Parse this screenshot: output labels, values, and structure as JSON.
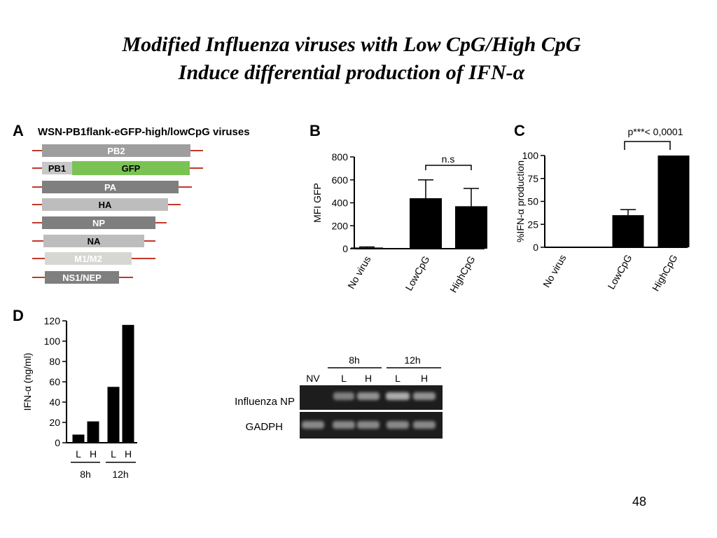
{
  "title": {
    "line1": "Modified Influenza viruses with Low CpG/High CpG",
    "line2": "Induce differential production of IFN-α"
  },
  "page_number": "48",
  "panels": {
    "a": {
      "letter": "A",
      "heading": "WSN-PB1flank-eGFP-high/lowCpG viruses",
      "segments": [
        {
          "label": "PB2",
          "color": "#9e9e9e"
        },
        {
          "label": "PB1",
          "color": "#c8c8c8",
          "insert_label": "GFP",
          "insert_color": "#7ac353"
        },
        {
          "label": "PA",
          "color": "#7f7f7f"
        },
        {
          "label": "HA",
          "color": "#bdbdbd"
        },
        {
          "label": "NP",
          "color": "#7f7f7f"
        },
        {
          "label": "NA",
          "color": "#bdbdbd"
        },
        {
          "label": "M1/M2",
          "color": "#d6d6d2"
        },
        {
          "label": "NS1/NEP",
          "color": "#7f7f7f"
        }
      ],
      "flank_color": "#c0392b"
    },
    "b": {
      "letter": "B"
    },
    "c": {
      "letter": "C"
    },
    "d": {
      "letter": "D"
    },
    "gel": {
      "time_labels": [
        "8h",
        "12h"
      ],
      "lane_labels": [
        "NV",
        "L",
        "H",
        "L",
        "H"
      ],
      "row_labels": [
        "Influenza NP",
        "GADPH"
      ]
    }
  },
  "chart_data": [
    {
      "id": "b",
      "type": "bar",
      "categories": [
        "No virus",
        "LowCpG",
        "HighCpG"
      ],
      "values": [
        10,
        440,
        370
      ],
      "errors": [
        5,
        160,
        155
      ],
      "ylabel": "MFI GFP",
      "ylim": [
        0,
        800
      ],
      "yticks": [
        0,
        200,
        400,
        600,
        800
      ],
      "annotation": "n.s",
      "grid": false
    },
    {
      "id": "c",
      "type": "bar",
      "categories": [
        "No virus",
        "LowCpG",
        "HighCpG"
      ],
      "values": [
        0.5,
        35,
        100
      ],
      "errors": [
        0,
        6,
        0
      ],
      "ylabel": "%IFN-α production",
      "ylim": [
        0,
        100
      ],
      "yticks": [
        0,
        25,
        50,
        75,
        100
      ],
      "annotation": "p***< 0,0001",
      "grid": false
    },
    {
      "id": "d",
      "type": "bar",
      "groups": [
        "8h",
        "12h"
      ],
      "categories": [
        "L",
        "H",
        "L",
        "H"
      ],
      "values": [
        8,
        21,
        55,
        116
      ],
      "ylabel": "IFN-α (ng/ml)",
      "ylim": [
        0,
        120
      ],
      "yticks": [
        0,
        20,
        40,
        60,
        80,
        100,
        120
      ],
      "grid": false
    }
  ]
}
